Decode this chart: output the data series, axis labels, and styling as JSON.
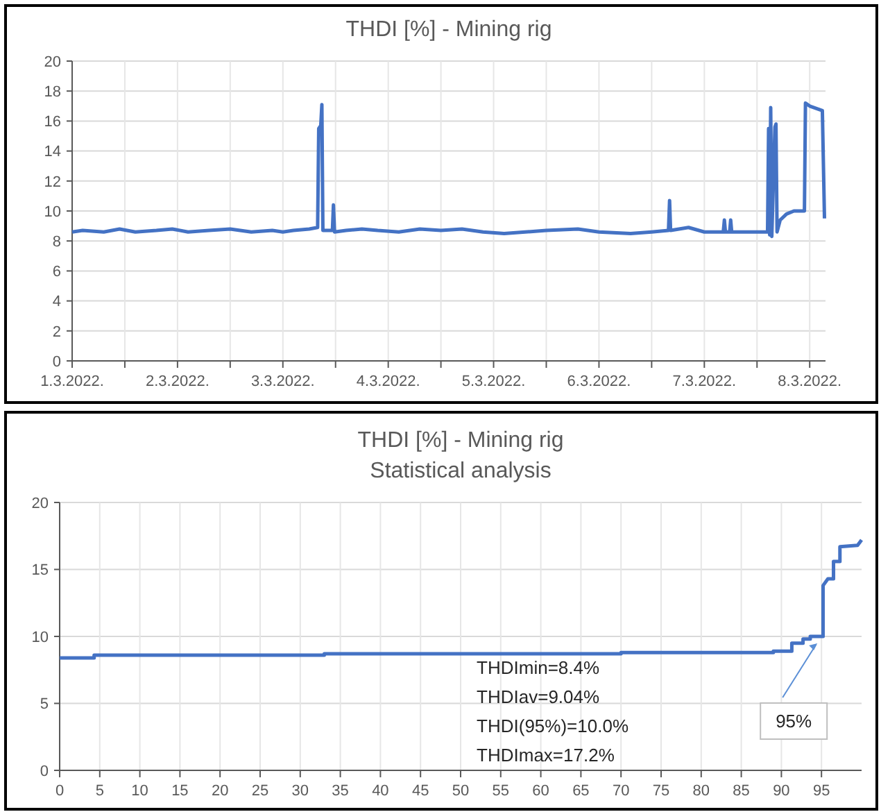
{
  "chart_data": [
    {
      "type": "line",
      "title": "THDI [%] - Mining rig",
      "color": "#4472c4",
      "grid": true,
      "x": [
        "2022-03-01T00:00",
        "2022-03-01T02:24",
        "2022-03-01T07:12",
        "2022-03-01T10:48",
        "2022-03-01T14:24",
        "2022-03-01T19:12",
        "2022-03-01T22:48",
        "2022-03-02T02:24",
        "2022-03-02T07:12",
        "2022-03-02T12:00",
        "2022-03-02T16:48",
        "2022-03-02T21:36",
        "2022-03-03T00:00",
        "2022-03-03T02:24",
        "2022-03-03T06:00",
        "2022-03-03T07:55",
        "2022-03-03T08:10",
        "2022-03-03T08:38",
        "2022-03-03T08:53",
        "2022-03-03T09:07",
        "2022-03-03T11:17",
        "2022-03-03T11:31",
        "2022-03-03T11:46",
        "2022-03-03T14:24",
        "2022-03-03T18:00",
        "2022-03-03T21:36",
        "2022-03-04T02:24",
        "2022-03-04T07:12",
        "2022-03-04T12:00",
        "2022-03-04T16:48",
        "2022-03-04T21:36",
        "2022-03-05T02:24",
        "2022-03-05T07:12",
        "2022-03-05T12:00",
        "2022-03-05T19:12",
        "2022-03-06T00:00",
        "2022-03-06T07:12",
        "2022-03-06T12:00",
        "2022-03-06T15:50",
        "2022-03-06T16:05",
        "2022-03-06T16:19",
        "2022-03-06T20:24",
        "2022-03-07T00:00",
        "2022-03-07T04:19",
        "2022-03-07T04:34",
        "2022-03-07T04:48",
        "2022-03-07T05:46",
        "2022-03-07T06:00",
        "2022-03-07T06:14",
        "2022-03-07T09:36",
        "2022-03-07T14:24",
        "2022-03-07T14:38",
        "2022-03-07T14:53",
        "2022-03-07T15:07",
        "2022-03-07T15:22",
        "2022-03-07T16:05",
        "2022-03-07T16:19",
        "2022-03-07T16:34",
        "2022-03-07T17:17",
        "2022-03-07T18:43",
        "2022-03-07T20:24",
        "2022-03-07T22:48",
        "2022-03-07T23:02",
        "2022-03-08T00:00",
        "2022-03-08T02:53",
        "2022-03-08T03:22"
      ],
      "values": [
        8.6,
        8.7,
        8.6,
        8.8,
        8.6,
        8.7,
        8.8,
        8.6,
        8.7,
        8.8,
        8.6,
        8.7,
        8.6,
        8.7,
        8.8,
        8.9,
        15.5,
        15.7,
        17.1,
        8.7,
        8.7,
        10.4,
        8.6,
        8.7,
        8.8,
        8.7,
        8.6,
        8.8,
        8.7,
        8.8,
        8.6,
        8.5,
        8.6,
        8.7,
        8.8,
        8.6,
        8.5,
        8.6,
        8.7,
        10.7,
        8.7,
        8.9,
        8.6,
        8.6,
        9.4,
        8.6,
        8.6,
        9.4,
        8.6,
        8.6,
        8.6,
        15.5,
        8.4,
        16.9,
        8.3,
        15.6,
        15.8,
        8.6,
        9.4,
        9.8,
        10.0,
        10.0,
        17.2,
        17.0,
        16.7,
        9.5
      ],
      "xlim": [
        "2022-03-01T00:00",
        "2022-03-08T03:36"
      ],
      "xticks": [
        {
          "value": "2022-03-01",
          "label": "1.3.2022."
        },
        {
          "value": "2022-03-01T12:00",
          "label": null
        },
        {
          "value": "2022-03-02",
          "label": "2.3.2022."
        },
        {
          "value": "2022-03-02T12:00",
          "label": null
        },
        {
          "value": "2022-03-03",
          "label": "3.3.2022."
        },
        {
          "value": "2022-03-03T12:00",
          "label": null
        },
        {
          "value": "2022-03-04",
          "label": "4.3.2022."
        },
        {
          "value": "2022-03-04T12:00",
          "label": null
        },
        {
          "value": "2022-03-05",
          "label": "5.3.2022."
        },
        {
          "value": "2022-03-05T12:00",
          "label": null
        },
        {
          "value": "2022-03-06",
          "label": "6.3.2022."
        },
        {
          "value": "2022-03-06T12:00",
          "label": null
        },
        {
          "value": "2022-03-07",
          "label": "7.3.2022."
        },
        {
          "value": "2022-03-07T12:00",
          "label": null
        },
        {
          "value": "2022-03-08",
          "label": "8.3.2022."
        }
      ],
      "ylim": [
        0,
        20
      ],
      "yticks": [
        0,
        2,
        4,
        6,
        8,
        10,
        12,
        14,
        16,
        18,
        20
      ]
    },
    {
      "type": "line",
      "title": "THDI [%] - Mining rig",
      "subtitle": "Statistical analysis",
      "color": "#4472c4",
      "grid": true,
      "x": [
        0,
        4.3,
        4.3,
        33,
        33,
        70,
        70,
        89,
        89,
        91.3,
        91.3,
        92.7,
        92.7,
        93.6,
        93.6,
        95.2,
        95.2,
        95.8,
        96.5,
        96.5,
        97.3,
        97.3,
        99.5,
        100
      ],
      "values": [
        8.4,
        8.4,
        8.6,
        8.6,
        8.7,
        8.7,
        8.8,
        8.8,
        8.9,
        8.9,
        9.5,
        9.5,
        9.8,
        9.8,
        10.0,
        10.0,
        13.8,
        14.3,
        14.3,
        15.6,
        15.6,
        16.7,
        16.8,
        17.2
      ],
      "xlim": [
        0,
        100
      ],
      "xticks": [
        0,
        5,
        10,
        15,
        20,
        25,
        30,
        35,
        40,
        45,
        50,
        55,
        60,
        65,
        70,
        75,
        80,
        85,
        90,
        95
      ],
      "ylim": [
        0,
        20
      ],
      "yticks": [
        0,
        5,
        10,
        15,
        20
      ],
      "annotations": [
        "THDImin=8.4%",
        "THDIav=9.04%",
        "THDI(95%)=10.0%",
        "THDImax=17.2%",
        {
          "text": "95%",
          "x": 95,
          "y": 10
        }
      ]
    }
  ]
}
